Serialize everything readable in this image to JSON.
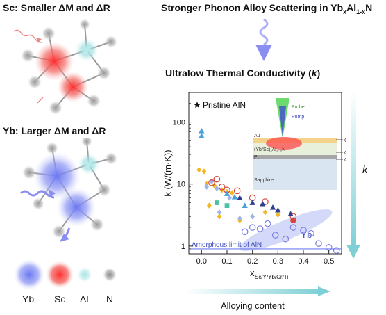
{
  "left_panel": {
    "sc_heading": "Sc: Smaller ΔM and ΔR",
    "yb_heading": "Yb: Larger ΔM and ΔR",
    "legend": [
      {
        "label": "Yb",
        "color": "#6f7cf0"
      },
      {
        "label": "Sc",
        "color": "#e8413c"
      },
      {
        "label": "Al",
        "color": "#8fd6d8"
      },
      {
        "label": "N",
        "color": "#8a8a8a"
      }
    ]
  },
  "right_panel": {
    "top_heading": "Stronger Phonon Alloy Scattering in Yb",
    "top_heading_sub1": "x",
    "top_heading_mid": "Al",
    "top_heading_sub2": "1-x",
    "top_heading_end": "N",
    "ultralow_heading_pre": "Ultralow Thermal Conductivity (",
    "ultralow_heading_k": "k",
    "ultralow_heading_post": ")",
    "k_side_label": "k",
    "alloying_label": "Alloying content"
  },
  "inset": {
    "probe_label": "Probe",
    "pump_label": "Pump",
    "au_label": "Au",
    "layer_label": "(Yb/Sc)ₓAl₁₋ₓN",
    "pt_label": "Pt",
    "sapphire_label": "Sapphire",
    "g1_label": "G₁",
    "g2_label": "G₂",
    "g3_label": "G₃"
  },
  "colors": {
    "yb": "#6f7cf0",
    "sc": "#e8413c",
    "al": "#8fd6d8",
    "n": "#8a8a8a",
    "arrow_blue": "#8a8ef0",
    "teal_arrow": "#7fd0d6"
  },
  "chart_data": {
    "type": "scatter",
    "xlabel": "x",
    "xlabel_sub": "Sc/Y/Yb/Cr/Ti",
    "ylabel": "k (W/(m·K))",
    "ylog": true,
    "xlim": [
      -0.05,
      0.55
    ],
    "ylim": [
      0.75,
      300
    ],
    "x_ticks": [
      "0.0",
      "0.1",
      "0.2",
      "0.3",
      "0.4",
      "0.5"
    ],
    "y_ticks": [
      "1",
      "10",
      "100"
    ],
    "legend_label": "Pristine AlN",
    "annotation_yb": "Yb",
    "amorphous_label": "Amorphous limit of AlN",
    "amorphous_value": 0.9,
    "series": [
      {
        "marker": "triangle-up",
        "color": "#4aa0d8",
        "points": [
          [
            0.0,
            72
          ],
          [
            0.0,
            60
          ]
        ]
      },
      {
        "marker": "diamond",
        "color": "#f2b824",
        "points": [
          [
            -0.01,
            17
          ],
          [
            0.01,
            16
          ],
          [
            0.02,
            10
          ],
          [
            0.05,
            9.5
          ],
          [
            0.08,
            8
          ],
          [
            0.1,
            7.5
          ],
          [
            0.12,
            7.2
          ],
          [
            0.03,
            4.5
          ],
          [
            0.25,
            3.5
          ],
          [
            0.3,
            3.2
          ],
          [
            0.07,
            3.0
          ],
          [
            0.15,
            2.6
          ]
        ]
      },
      {
        "marker": "diamond",
        "color": "#9fb5e6",
        "points": [
          [
            0.02,
            9
          ],
          [
            0.04,
            11
          ],
          [
            0.06,
            8.5
          ],
          [
            0.11,
            6
          ],
          [
            0.07,
            3.5
          ],
          [
            0.15,
            2.8
          ],
          [
            0.2,
            3.0
          ]
        ]
      },
      {
        "marker": "circle-open",
        "color": "#d9443b",
        "points": [
          [
            0.04,
            10.5
          ],
          [
            0.06,
            12
          ],
          [
            0.08,
            9
          ],
          [
            0.1,
            8
          ],
          [
            0.14,
            7.8
          ],
          [
            0.2,
            6
          ],
          [
            0.25,
            5.2
          ],
          [
            0.36,
            3.0
          ]
        ]
      },
      {
        "marker": "circle",
        "color": "#d9443b",
        "points": [
          [
            0.36,
            2.6
          ]
        ]
      },
      {
        "marker": "triangle-up",
        "color": "#2f3e8c",
        "points": [
          [
            0.15,
            6.0
          ],
          [
            0.2,
            5.0
          ],
          [
            0.24,
            4.8
          ],
          [
            0.28,
            4.2
          ],
          [
            0.3,
            3.8
          ],
          [
            0.35,
            3.3
          ]
        ]
      },
      {
        "marker": "triangle-up",
        "color": "#4aa0d8",
        "points": [
          [
            0.1,
            7
          ],
          [
            0.13,
            6.2
          ],
          [
            0.17,
            4.5
          ]
        ]
      },
      {
        "marker": "square",
        "color": "#4fc0a8",
        "points": [
          [
            0.06,
            5.0
          ],
          [
            0.1,
            4.5
          ]
        ]
      },
      {
        "marker": "circle-open",
        "color": "#7a7ee6",
        "points": [
          [
            0.17,
            1.7
          ],
          [
            0.2,
            2.0
          ],
          [
            0.23,
            1.9
          ],
          [
            0.26,
            2.3
          ],
          [
            0.29,
            1.5
          ],
          [
            0.33,
            1.3
          ],
          [
            0.36,
            2.0
          ],
          [
            0.4,
            1.8
          ],
          [
            0.43,
            1.6
          ],
          [
            0.46,
            1.1
          ],
          [
            0.5,
            0.95
          ],
          [
            0.53,
            0.85
          ]
        ]
      }
    ]
  }
}
